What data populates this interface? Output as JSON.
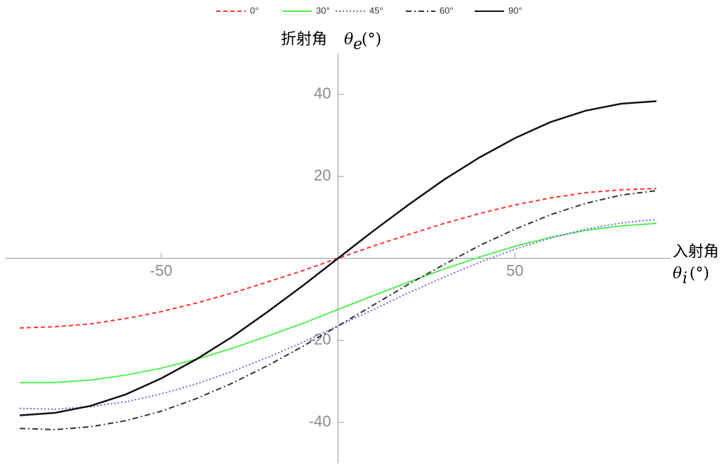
{
  "chart_data": {
    "type": "line",
    "x_label": "入射角",
    "x_symbol": "θ",
    "x_subscript": "i",
    "x_unit": "(°)",
    "y_label": "折射角",
    "y_symbol": "θ",
    "y_subscript": "e",
    "y_unit": "(°)",
    "x": [
      -90,
      -80,
      -70,
      -60,
      -50,
      -40,
      -30,
      -20,
      -10,
      0,
      10,
      20,
      30,
      40,
      50,
      60,
      70,
      80,
      90
    ],
    "series": [
      {
        "name": "0°",
        "color": "#ff3333",
        "dash": "dashed",
        "values": [
          -17,
          -16.7,
          -16,
          -14.7,
          -13,
          -10.9,
          -8.5,
          -5.8,
          -3,
          0,
          3,
          5.8,
          8.5,
          10.9,
          13,
          14.7,
          16,
          16.7,
          17
        ]
      },
      {
        "name": "30°",
        "color": "#55ee55",
        "dash": "solid",
        "values": [
          -30.3,
          -30.3,
          -29.7,
          -28.5,
          -26.8,
          -24.6,
          -22.0,
          -19.0,
          -15.9,
          -12.5,
          -9.1,
          -5.8,
          -2.6,
          0.3,
          2.9,
          5.1,
          6.8,
          7.9,
          8.5
        ]
      },
      {
        "name": "45°",
        "color": "#6666ee",
        "dash": "dotted",
        "values": [
          -36.6,
          -36.8,
          -36.2,
          -35.0,
          -33.1,
          -30.6,
          -27.6,
          -24.2,
          -20.5,
          -16.5,
          -12.5,
          -8.4,
          -4.6,
          -1.0,
          2.2,
          4.9,
          7.1,
          8.6,
          9.5
        ]
      },
      {
        "name": "60°",
        "color": "#333333",
        "dash": "dashdot",
        "values": [
          -41.5,
          -41.8,
          -41.1,
          -39.6,
          -37.3,
          -34.2,
          -30.5,
          -26.2,
          -21.5,
          -16.5,
          -11.4,
          -6.3,
          -1.5,
          3.1,
          7.1,
          10.6,
          13.4,
          15.4,
          16.5
        ]
      },
      {
        "name": "90°",
        "color": "#111111",
        "dash": "solid",
        "values": [
          -38.3,
          -37.7,
          -36,
          -33.2,
          -29.3,
          -24.6,
          -19.2,
          -13.1,
          -6.7,
          0,
          6.7,
          13.1,
          19.2,
          24.6,
          29.3,
          33.2,
          36,
          37.7,
          38.3
        ]
      }
    ],
    "xlim": [
      -94,
      94
    ],
    "ylim": [
      -50,
      50
    ],
    "xticks": [
      -50,
      50
    ],
    "yticks": [
      -40,
      -20,
      20,
      40
    ],
    "legend": "top"
  }
}
